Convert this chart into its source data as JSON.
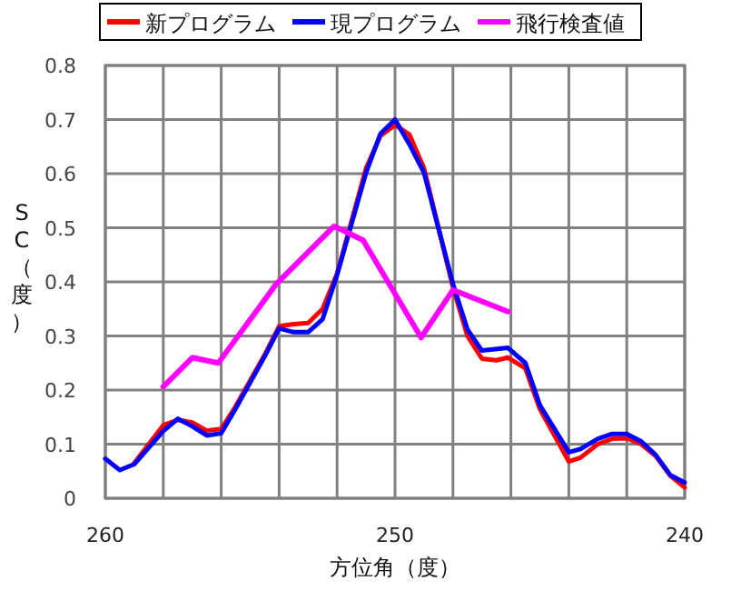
{
  "chart_data": {
    "type": "line",
    "xlabel": "方位角（度）",
    "ylabel": "SC（度）",
    "xlim": [
      260,
      240
    ],
    "xticks": [
      260,
      {
        "value": 258,
        "label": null
      },
      {
        "value": 256,
        "label": null
      },
      {
        "value": 254,
        "label": null
      },
      {
        "value": 252,
        "label": null
      },
      250,
      {
        "value": 248,
        "label": null
      },
      {
        "value": 246,
        "label": null
      },
      {
        "value": 244,
        "label": null
      },
      {
        "value": 242,
        "label": null
      },
      240
    ],
    "ylim": [
      0,
      0.8
    ],
    "yticks": [
      0,
      0.1,
      0.2,
      0.3,
      0.4,
      0.5,
      0.6,
      0.7,
      0.8
    ],
    "grid": true,
    "legend": "top",
    "marker": "none",
    "line_style": "solid",
    "series": [
      {
        "name": "新プログラム",
        "color": "#ff0000",
        "x": [
          259.0,
          258.0,
          257.5,
          257.0,
          256.5,
          256.0,
          255.5,
          254.5,
          254.0,
          253.5,
          253.0,
          252.5,
          252.0,
          251.0,
          250.5,
          250.0,
          249.5,
          249.0,
          248.0,
          247.5,
          247.0,
          246.5,
          246.1,
          245.5,
          245.0,
          244.0,
          243.6,
          243.0,
          242.5,
          242.0,
          241.5,
          241.0,
          240.5,
          240.0
        ],
        "values": [
          0.065,
          0.135,
          0.145,
          0.14,
          0.125,
          0.128,
          0.17,
          0.265,
          0.318,
          0.322,
          0.324,
          0.35,
          0.415,
          0.61,
          0.67,
          0.69,
          0.672,
          0.61,
          0.39,
          0.3,
          0.258,
          0.255,
          0.26,
          0.24,
          0.165,
          0.068,
          0.075,
          0.1,
          0.11,
          0.111,
          0.1,
          0.078,
          0.042,
          0.02
        ]
      },
      {
        "name": "現プログラム",
        "color": "#0000ff",
        "x": [
          260.0,
          259.5,
          259.0,
          258.0,
          257.5,
          257.0,
          256.5,
          256.0,
          255.5,
          254.5,
          254.0,
          253.5,
          253.0,
          252.5,
          252.0,
          251.0,
          250.5,
          250.0,
          249.5,
          249.0,
          248.0,
          247.5,
          247.0,
          246.1,
          245.5,
          245.0,
          244.0,
          243.6,
          243.0,
          242.5,
          242.0,
          241.5,
          241.0,
          240.5,
          240.0
        ],
        "values": [
          0.073,
          0.052,
          0.063,
          0.124,
          0.147,
          0.133,
          0.116,
          0.12,
          0.166,
          0.262,
          0.314,
          0.307,
          0.307,
          0.331,
          0.413,
          0.602,
          0.674,
          0.7,
          0.654,
          0.602,
          0.396,
          0.312,
          0.273,
          0.278,
          0.25,
          0.172,
          0.085,
          0.091,
          0.11,
          0.119,
          0.119,
          0.105,
          0.08,
          0.043,
          0.029
        ]
      },
      {
        "name": "飛行検査値",
        "color": "#ff00ff",
        "x": [
          258.0,
          257.0,
          256.1,
          254.1,
          252.1,
          251.1,
          249.1,
          248.0,
          246.1
        ],
        "values": [
          0.206,
          0.26,
          0.25,
          0.396,
          0.503,
          0.477,
          0.297,
          0.385,
          0.345
        ]
      }
    ]
  }
}
